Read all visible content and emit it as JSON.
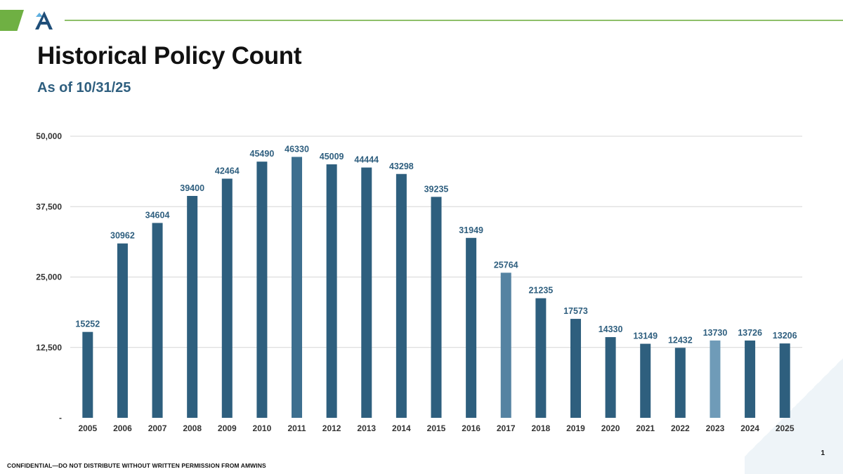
{
  "header": {
    "title": "Historical Policy Count",
    "subtitle": "As of 10/31/25"
  },
  "footer": {
    "confidential": "CONFIDENTIAL—DO NOT DISTRIBUTE WITHOUT WRITTEN PERMISSION FROM AMWINS",
    "page_number": "1"
  },
  "colors": {
    "bar": "#2e5f7e",
    "bar_highlight_2011": "#3d6f8f",
    "bar_highlight_2017": "#5583a2",
    "bar_highlight_2023": "#6f9bb8",
    "label": "#2f5f7f",
    "accent_green": "#6fb043",
    "logo_blue": "#1f4e79",
    "logo_light": "#5fb0e0"
  },
  "chart_data": {
    "type": "bar",
    "title": "",
    "xlabel": "",
    "ylabel": "",
    "categories": [
      "2005",
      "2006",
      "2007",
      "2008",
      "2009",
      "2010",
      "2011",
      "2012",
      "2013",
      "2014",
      "2015",
      "2016",
      "2017",
      "2018",
      "2019",
      "2020",
      "2021",
      "2022",
      "2023",
      "2024",
      "2025"
    ],
    "values": [
      15252,
      30962,
      34604,
      39400,
      42464,
      45490,
      46330,
      45009,
      44444,
      43298,
      39235,
      31949,
      25764,
      21235,
      17573,
      14330,
      13149,
      12432,
      13730,
      13726,
      13206
    ],
    "ylim": [
      0,
      50000
    ],
    "yticks": [
      0,
      12500,
      25000,
      37500,
      50000
    ],
    "ytick_labels": [
      "-",
      "12,500",
      "25,000",
      "37,500",
      "50,000"
    ],
    "grid": true,
    "legend": "none",
    "highlighted": {
      "2011": "bar_highlight_2011",
      "2017": "bar_highlight_2017",
      "2023": "bar_highlight_2023"
    }
  }
}
